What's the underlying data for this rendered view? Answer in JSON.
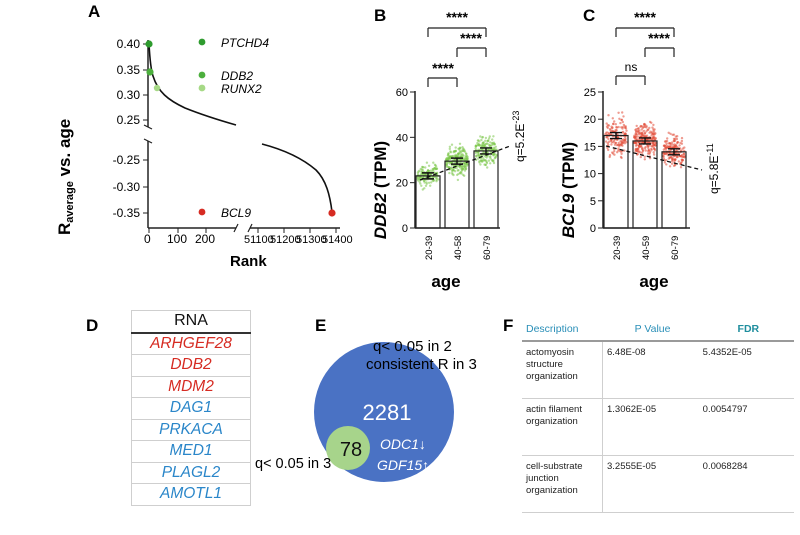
{
  "panels": {
    "a": "A",
    "b": "B",
    "c": "C",
    "d": "D",
    "e": "E",
    "f": "F"
  },
  "panel_a": {
    "ylabel_main": "R",
    "ylabel_sub": "average",
    "ylabel_rest": " vs. age",
    "xlabel": "Rank",
    "yticks_upper": [
      "0.40",
      "0.35",
      "0.30",
      "0.25"
    ],
    "yticks_lower": [
      "-0.25",
      "-0.30",
      "-0.35"
    ],
    "xticks_left": [
      "0",
      "100",
      "200"
    ],
    "xticks_right": [
      "51100",
      "51200",
      "51300",
      "51400"
    ],
    "labels": [
      {
        "text": "PTCHD4",
        "color": "#2e9b2e"
      },
      {
        "text": "DDB2",
        "color": "#4caf3d"
      },
      {
        "text": "RUNX2",
        "color": "#a6d986"
      },
      {
        "text": "BCL9",
        "color": "#d62b22"
      }
    ]
  },
  "panel_b": {
    "ylabel_gene": "DDB2",
    "ylabel_unit": " (TPM)",
    "xlabel": "age",
    "categories": [
      "20-39",
      "40-58",
      "60-79"
    ],
    "values": [
      23,
      29.5,
      34
    ],
    "yticks": [
      "0",
      "20",
      "40",
      "60"
    ],
    "ylim": [
      0,
      60
    ],
    "sig": [
      "****",
      "****",
      "****"
    ],
    "q_text": "q=5.2E",
    "q_exp": "-23",
    "color": "#7cc64a"
  },
  "panel_c": {
    "ylabel_gene": "BCL9",
    "ylabel_unit": " (TPM)",
    "xlabel": "age",
    "categories": [
      "20-39",
      "40-59",
      "60-79"
    ],
    "values": [
      17,
      16,
      14
    ],
    "yticks": [
      "0",
      "5",
      "10",
      "15",
      "20",
      "25"
    ],
    "ylim": [
      0,
      25
    ],
    "sig": [
      "****",
      "ns",
      "****"
    ],
    "q_text": "q=5.8E",
    "q_exp": "-11",
    "color": "#e24a36"
  },
  "panel_d": {
    "header": "RNA",
    "rows": [
      {
        "gene": "ARHGEF28",
        "color": "#d62b22"
      },
      {
        "gene": "DDB2",
        "color": "#d62b22"
      },
      {
        "gene": "MDM2",
        "color": "#d62b22"
      },
      {
        "gene": "DAG1",
        "color": "#2a86c9"
      },
      {
        "gene": "PRKACA",
        "color": "#2a86c9"
      },
      {
        "gene": "MED1",
        "color": "#2a86c9"
      },
      {
        "gene": "PLAGL2",
        "color": "#2a86c9"
      },
      {
        "gene": "AMOTL1",
        "color": "#2a86c9"
      }
    ]
  },
  "panel_e": {
    "outer_label_1": "q< 0.05 in 2",
    "outer_label_2": "consistent R in 3",
    "outer_count": "2281",
    "inner_count": "78",
    "inner_label": "q< 0.05 in 3",
    "gene_1": "ODC1↓",
    "gene_2": "GDF15↑",
    "outer_color": "#4a72c4",
    "inner_color": "#a7d48b"
  },
  "panel_f": {
    "headers": [
      "Description",
      "P Value",
      "FDR"
    ],
    "rows": [
      {
        "desc": "actomyosin structure organization",
        "p": "6.48E-08",
        "fdr": "5.4352E-05"
      },
      {
        "desc": "actin filament organization",
        "p": "1.3062E-05",
        "fdr": "0.0054797"
      },
      {
        "desc": "cell-substrate junction organization",
        "p": "3.2555E-05",
        "fdr": "0.0068284"
      }
    ]
  },
  "chart_data": [
    {
      "type": "scatter",
      "title": "",
      "xlabel": "Rank",
      "ylabel": "Raverage vs. age",
      "series": [
        {
          "name": "PTCHD4",
          "x": [
            1
          ],
          "y": [
            0.4
          ]
        },
        {
          "name": "DDB2",
          "x": [
            2
          ],
          "y": [
            0.34
          ]
        },
        {
          "name": "RUNX2",
          "x": [
            18
          ],
          "y": [
            0.31
          ]
        },
        {
          "name": "BCL9",
          "x": [
            51378
          ],
          "y": [
            -0.345
          ]
        }
      ],
      "ylim_upper": [
        0.23,
        0.41
      ],
      "ylim_lower": [
        -0.36,
        -0.23
      ]
    },
    {
      "type": "bar",
      "xlabel": "age",
      "ylabel": "DDB2 (TPM)",
      "categories": [
        "20-39",
        "40-58",
        "60-79"
      ],
      "values": [
        23,
        29.5,
        34
      ],
      "ylim": [
        0,
        60
      ]
    },
    {
      "type": "bar",
      "xlabel": "age",
      "ylabel": "BCL9 (TPM)",
      "categories": [
        "20-39",
        "40-59",
        "60-79"
      ],
      "values": [
        17,
        16,
        14
      ],
      "ylim": [
        0,
        25
      ]
    }
  ]
}
